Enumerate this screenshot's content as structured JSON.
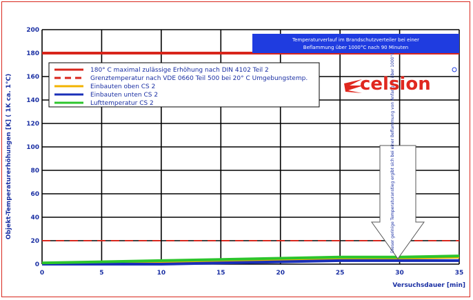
{
  "chart_data": {
    "type": "line",
    "title_lines": [
      "Temperaturverlauf im Brandschutzverteiler bei einer",
      "Beflammung über 1000°C nach 90 Minuten"
    ],
    "xlabel": "Versuchsdauer [min]",
    "ylabel": "Objekt-Temperaturerhöhungen [K] ( 1K ca. 1°C)",
    "xlim": [
      0,
      35
    ],
    "ylim": [
      0,
      200
    ],
    "x_ticks": [
      0,
      5,
      10,
      15,
      20,
      25,
      30,
      35
    ],
    "y_ticks": [
      0,
      20,
      40,
      60,
      80,
      100,
      120,
      140,
      160,
      180,
      200
    ],
    "grid": true,
    "legend_position": "top-left",
    "series": [
      {
        "name": "180° C maximal zulässige Erhöhung nach DIN 4102 Teil 2",
        "color": "#d8251b",
        "style": "solid",
        "x": [
          0,
          35
        ],
        "y": [
          180,
          180
        ]
      },
      {
        "name": "Grenztemperatur nach VDE 0660 Teil 500 bei 20° C Umgebungstemp.",
        "color": "#d8251b",
        "style": "dashed",
        "x": [
          0,
          35
        ],
        "y": [
          20,
          20
        ]
      },
      {
        "name": "Einbauten oben CS 2",
        "color": "#f2b300",
        "style": "solid",
        "x": [
          0,
          5,
          10,
          15,
          20,
          25,
          30,
          35
        ],
        "y": [
          0,
          1,
          2,
          3,
          4,
          5,
          5,
          6
        ]
      },
      {
        "name": "Einbauten unten CS 2",
        "color": "#1a2fb8",
        "style": "solid",
        "x": [
          0,
          5,
          10,
          15,
          20,
          25,
          30,
          35
        ],
        "y": [
          0,
          0,
          0,
          1,
          2,
          3,
          3,
          3
        ]
      },
      {
        "name": "Lufttemperatur CS 2",
        "color": "#2cc52c",
        "style": "solid",
        "x": [
          0,
          5,
          10,
          15,
          20,
          25,
          30,
          35
        ],
        "y": [
          1,
          2,
          3,
          4,
          5,
          6,
          6,
          7
        ]
      }
    ],
    "annotation": "Dieser gerinige Temperaturanstieg ergibt sich bei einer Beflammung von Anfang an über 1000°C",
    "logo_text": "celsion"
  },
  "colors": {
    "axis": "#1a2fa3",
    "grid": "#000000",
    "frame": "#d8251b",
    "title_bg": "#1f3ce0"
  }
}
